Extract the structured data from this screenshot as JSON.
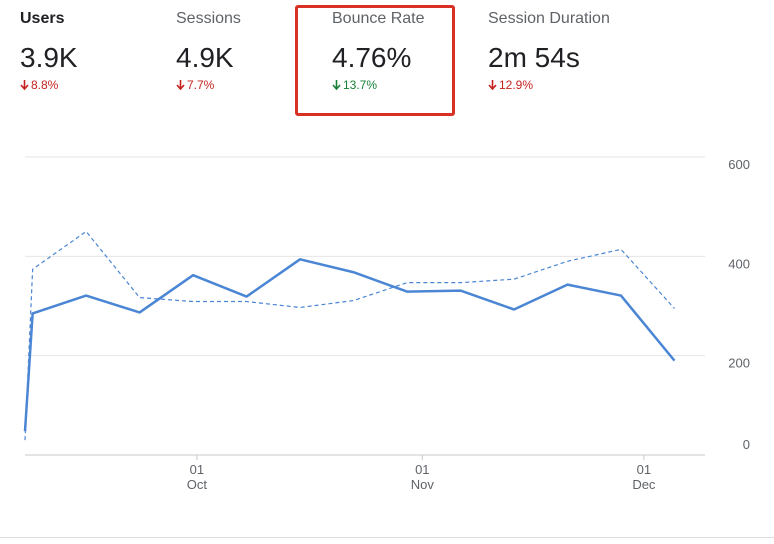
{
  "metrics": [
    {
      "label": "Users",
      "value": "3.9K",
      "change": "8.8%"
    },
    {
      "label": "Sessions",
      "value": "4.9K",
      "change": "7.7%"
    },
    {
      "label": "Bounce Rate",
      "value": "4.76%",
      "change": "13.7%"
    },
    {
      "label": "Session Duration",
      "value": "2m 54s",
      "change": "12.9%"
    }
  ],
  "chart_data": {
    "type": "line",
    "x": [
      0,
      1,
      8,
      15,
      22,
      29,
      36,
      43,
      50,
      57,
      64,
      71,
      78,
      85
    ],
    "xlim": [
      0,
      89
    ],
    "xticks": [
      {
        "value": 22.5,
        "label": "01 Oct"
      },
      {
        "value": 52,
        "label": "01 Nov"
      },
      {
        "value": 81,
        "label": "01 Dec"
      }
    ],
    "ylim": [
      0,
      600
    ],
    "yticks": [
      0,
      200,
      400,
      600
    ],
    "grid": true,
    "series": [
      {
        "color": "#4a86d4",
        "style": "solid",
        "values": [
          48,
          285,
          321,
          287,
          362,
          319,
          394,
          368,
          329,
          331,
          293,
          343,
          321,
          190
        ]
      },
      {
        "color": "#4a86d4",
        "style": "dashed",
        "values": [
          30,
          374,
          450,
          317,
          309,
          309,
          297,
          311,
          347,
          347,
          354,
          390,
          414,
          295
        ]
      }
    ]
  }
}
